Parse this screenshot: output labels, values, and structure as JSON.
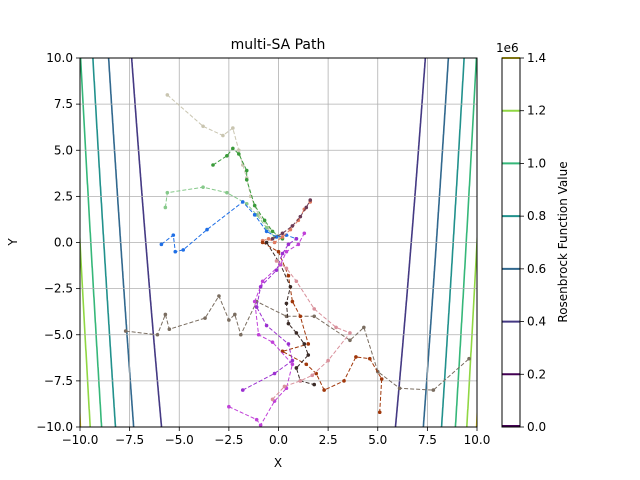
{
  "chart_data": {
    "type": "line",
    "title": "multi-SA Path",
    "xlabel": "X",
    "ylabel": "Y",
    "xlim": [
      -10,
      10
    ],
    "ylim": [
      -10,
      10
    ],
    "xticks": [
      -10,
      -7.5,
      -5,
      -2.5,
      0,
      2.5,
      5,
      7.5,
      10
    ],
    "yticks": [
      -10,
      -7.5,
      -5,
      -2.5,
      0,
      2.5,
      5,
      7.5,
      10
    ],
    "xtick_labels": [
      "−10.0",
      "−7.5",
      "−5.0",
      "−2.5",
      "0.0",
      "2.5",
      "5.0",
      "7.5",
      "10.0"
    ],
    "ytick_labels": [
      "−10.0",
      "−7.5",
      "−5.0",
      "−2.5",
      "0.0",
      "2.5",
      "5.0",
      "7.5",
      "10.0"
    ],
    "grid": true,
    "contours": {
      "function": "rosenbrock",
      "levels": [
        0,
        200000,
        400000,
        600000,
        800000,
        1000000,
        1200000,
        1400000
      ],
      "colors": [
        "#440154",
        "#443983",
        "#31688e",
        "#21918c",
        "#35b779",
        "#90d743",
        "#fde725"
      ]
    },
    "colorbar": {
      "label": "Rosenbrock Function Value",
      "exponent_label": "1e6",
      "ticks": [
        0,
        0.2,
        0.4,
        0.6,
        0.8,
        1.0,
        1.2,
        1.4
      ],
      "tick_labels": [
        "0.0",
        "0.2",
        "0.4",
        "0.6",
        "0.8",
        "1.0",
        "1.2",
        "1.4"
      ],
      "colors": [
        "#440154",
        "#443983",
        "#31688e",
        "#21918c",
        "#35b779",
        "#90d743",
        "#fde725"
      ]
    },
    "series": [
      {
        "color": "#c9c5b0",
        "x": [
          -5.6,
          -3.8,
          -2.8,
          -2.3,
          -2.0,
          -1.8,
          -1.6,
          -1.4,
          -1.0,
          -0.5,
          0.0
        ],
        "y": [
          8.0,
          6.3,
          5.8,
          6.2,
          5.0,
          4.2,
          3.5,
          2.5,
          1.5,
          0.8,
          0.3
        ]
      },
      {
        "color": "#3a9b3a",
        "x": [
          -3.3,
          -2.6,
          -2.3,
          -2.0,
          -1.6,
          -1.6,
          -1.2,
          -0.7,
          -0.3,
          0.2
        ],
        "y": [
          4.2,
          4.7,
          5.1,
          4.8,
          3.9,
          3.4,
          2.0,
          1.2,
          0.6,
          0.2
        ]
      },
      {
        "color": "#86c98a",
        "x": [
          -5.7,
          -5.6,
          -3.8,
          -2.6,
          -1.6,
          -1.1,
          -0.6,
          -0.2
        ],
        "y": [
          1.9,
          2.7,
          3.0,
          2.7,
          2.1,
          1.5,
          0.8,
          0.3
        ]
      },
      {
        "color": "#1f6fe6",
        "x": [
          -5.9,
          -5.3,
          -5.2,
          -4.8,
          -3.6,
          -1.8,
          -1.2,
          -0.6,
          -0.1,
          0.4,
          0.9
        ],
        "y": [
          -0.1,
          0.4,
          -0.5,
          -0.4,
          0.7,
          2.2,
          1.5,
          0.6,
          0.3,
          0.4,
          0.2
        ]
      },
      {
        "color": "#e07a5f",
        "x": [
          -0.8,
          -0.5,
          -0.2,
          0.2,
          0.6,
          1.0,
          1.3,
          1.6
        ],
        "y": [
          0.1,
          0.2,
          0.0,
          0.3,
          0.7,
          1.2,
          1.8,
          2.2
        ]
      },
      {
        "color": "#7a6d60",
        "x": [
          -7.7,
          -6.1,
          -5.7,
          -5.5,
          -3.7,
          -3.0,
          -2.5,
          -2.2,
          -1.9,
          -1.1,
          0.4,
          1.8,
          3.6,
          4.3,
          5.0,
          6.1,
          7.8,
          9.6
        ],
        "y": [
          -4.8,
          -5.0,
          -3.9,
          -4.7,
          -4.1,
          -2.9,
          -4.2,
          -3.9,
          -5.0,
          -3.2,
          -4.0,
          -4.0,
          -5.3,
          -4.6,
          -7.0,
          -7.9,
          -8.0,
          -6.3
        ]
      },
      {
        "color": "#a0370a",
        "x": [
          -0.8,
          0.0,
          0.5,
          0.7,
          1.1,
          1.5,
          0.2,
          1.4,
          1.9,
          2.3,
          3.3,
          3.9,
          4.6,
          5.2,
          5.1
        ],
        "y": [
          0.0,
          -0.5,
          -1.8,
          -3.2,
          -4.0,
          -5.5,
          -5.9,
          -6.6,
          -7.1,
          -8.0,
          -7.5,
          -6.2,
          -6.3,
          -7.4,
          -9.2
        ]
      },
      {
        "color": "#3a2a26",
        "x": [
          -0.6,
          0.1,
          0.6,
          0.4,
          0.5,
          0.9,
          1.3,
          1.5,
          0.9,
          1.1,
          1.8
        ],
        "y": [
          0.0,
          -1.2,
          -2.4,
          -3.3,
          -4.4,
          -4.9,
          -5.5,
          -6.1,
          -6.8,
          -7.5,
          -7.7
        ]
      },
      {
        "color": "#c040d8",
        "x": [
          -2.5,
          -1.1,
          -0.9,
          -0.2,
          0.4,
          0.7,
          -0.3,
          -1.0,
          -1.2,
          -0.8,
          0.1,
          0.4,
          1.0,
          1.3
        ],
        "y": [
          -8.9,
          -9.6,
          -9.9,
          -8.6,
          -7.9,
          -6.6,
          -5.4,
          -5.0,
          -3.2,
          -2.1,
          -1.2,
          -0.5,
          -0.1,
          0.5
        ]
      },
      {
        "color": "#9b2fd0",
        "x": [
          -1.8,
          -0.2,
          0.7,
          0.5,
          -0.6,
          -1.1,
          -0.9,
          -0.1,
          0.2,
          0.5,
          0.9
        ],
        "y": [
          -8.0,
          -7.1,
          -6.4,
          -5.5,
          -4.5,
          -3.5,
          -2.4,
          -1.5,
          -0.6,
          -0.1,
          0.2
        ]
      },
      {
        "color": "#d9909b",
        "x": [
          -0.3,
          0.3,
          1.1,
          1.7,
          2.5,
          3.6,
          2.9,
          1.8,
          0.9,
          0.4,
          -0.1
        ],
        "y": [
          -8.5,
          -7.8,
          -7.5,
          -7.2,
          -6.4,
          -4.9,
          -4.6,
          -3.6,
          -2.1,
          -1.4,
          -1.0
        ]
      },
      {
        "color": "#6b3a55",
        "x": [
          -0.3,
          0.2,
          0.7,
          1.1,
          1.4,
          1.6
        ],
        "y": [
          0.2,
          0.5,
          0.9,
          1.4,
          1.9,
          2.3
        ]
      }
    ]
  }
}
